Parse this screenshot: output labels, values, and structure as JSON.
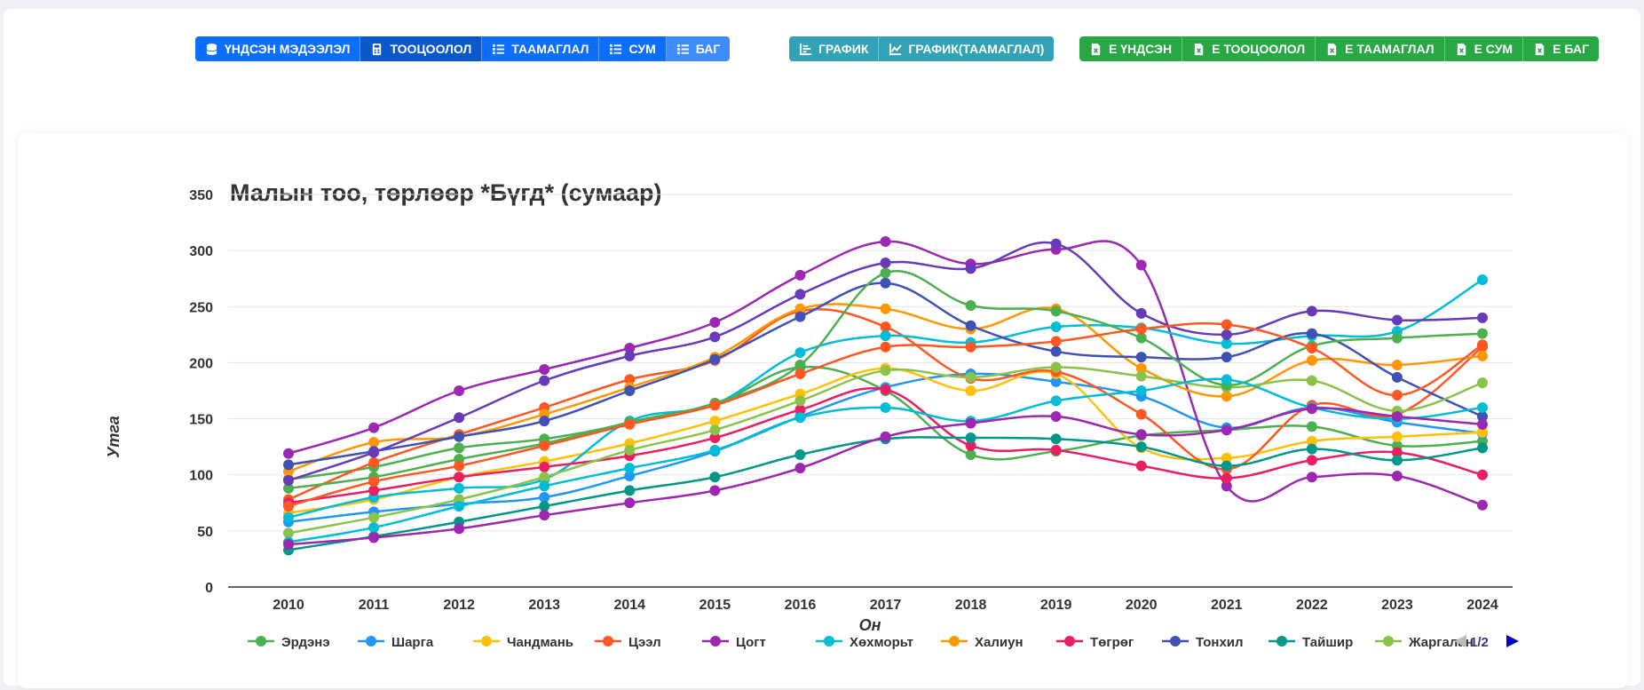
{
  "toolbar": {
    "group1": [
      {
        "label": "ҮНДСЭН МЭДЭЭЛЭЛ",
        "icon": "database-icon"
      },
      {
        "label": "ТООЦООЛОЛ",
        "icon": "calculator-icon"
      },
      {
        "label": "ТААМАГЛАЛ",
        "icon": "list-icon"
      },
      {
        "label": "СУМ",
        "icon": "list-icon"
      },
      {
        "label": "БАГ",
        "icon": "list-icon"
      }
    ],
    "group2": [
      {
        "label": "ГРАФИК",
        "icon": "bar-chart-icon"
      },
      {
        "label": "ГРАФИК(ТААМАГЛАЛ)",
        "icon": "line-chart-icon"
      }
    ],
    "group3": [
      {
        "label": "Е ҮНДСЭН",
        "icon": "excel-file-icon"
      },
      {
        "label": "Е ТООЦООЛОЛ",
        "icon": "excel-file-icon"
      },
      {
        "label": "Е ТААМАГЛАЛ",
        "icon": "excel-file-icon"
      },
      {
        "label": "Е СУМ",
        "icon": "excel-file-icon"
      },
      {
        "label": "Е БАГ",
        "icon": "excel-file-icon"
      }
    ]
  },
  "colors": {
    "primary": "#0d6efd",
    "info": "#31a3b4",
    "success": "#28a745"
  },
  "chart_data": {
    "type": "line",
    "title": "Малын тоо, төрлөөр *Бүгд* (сумаар)",
    "xlabel": "Он",
    "ylabel": "Утга",
    "ylim": [
      0,
      350
    ],
    "yticks": [
      0,
      50,
      100,
      150,
      200,
      250,
      300,
      350
    ],
    "grid": true,
    "legend_position": "bottom",
    "legend_page": "1/2",
    "categories": [
      "2010",
      "2011",
      "2012",
      "2013",
      "2014",
      "2015",
      "2016",
      "2017",
      "2018",
      "2019",
      "2020",
      "2021",
      "2022",
      "2023",
      "2024"
    ],
    "series": [
      {
        "name": "Эрдэнэ",
        "color": "#4caf50",
        "values": [
          96,
          107,
          124,
          132,
          146,
          163,
          196,
          175,
          118,
          121,
          135,
          140,
          143,
          126,
          130
        ],
        "marker": true
      },
      {
        "name": "Шарга",
        "color": "#2196f3",
        "values": [
          58,
          67,
          74,
          80,
          99,
          121,
          152,
          178,
          190,
          183,
          170,
          142,
          160,
          147,
          137
        ],
        "marker": true
      },
      {
        "name": "Чандмань",
        "color": "#ffc107",
        "values": [
          66,
          78,
          98,
          112,
          128,
          148,
          172,
          195,
          175,
          190,
          124,
          115,
          130,
          134,
          138
        ],
        "marker": true
      },
      {
        "name": "Цээл",
        "color": "#ff5722",
        "values": [
          78,
          111,
          136,
          160,
          185,
          202,
          246,
          232,
          186,
          192,
          154,
          105,
          162,
          154,
          214
        ],
        "marker": true
      },
      {
        "name": "Цогт",
        "color": "#9c27b0",
        "values": [
          119,
          142,
          175,
          194,
          213,
          236,
          278,
          308,
          288,
          301,
          287,
          90,
          98,
          99,
          73
        ],
        "marker": true
      },
      {
        "name": "Хөхморьт",
        "color": "#00bcd4",
        "values": [
          62,
          80,
          88,
          96,
          148,
          163,
          209,
          224,
          218,
          232,
          231,
          217,
          224,
          228,
          274
        ],
        "marker": true
      },
      {
        "name": "Халиун",
        "color": "#ff9800",
        "values": [
          103,
          129,
          134,
          154,
          178,
          205,
          248,
          248,
          230,
          248,
          195,
          170,
          202,
          198,
          206
        ],
        "marker": true
      },
      {
        "name": "Төгрөг",
        "color": "#e91e63",
        "values": [
          75,
          86,
          98,
          107,
          117,
          133,
          158,
          176,
          126,
          122,
          108,
          97,
          113,
          120,
          100
        ],
        "marker": true
      },
      {
        "name": "Тонхил",
        "color": "#3f51b5",
        "values": [
          109,
          121,
          134,
          148,
          175,
          203,
          241,
          271,
          233,
          210,
          205,
          205,
          226,
          187,
          152
        ],
        "marker": true
      },
      {
        "name": "Тайшир",
        "color": "#009688",
        "values": [
          33,
          45,
          58,
          72,
          86,
          98,
          118,
          132,
          133,
          132,
          125,
          108,
          123,
          113,
          124
        ],
        "marker": true
      },
      {
        "name": "Жаргалан",
        "color": "#8bc34a",
        "values": [
          48,
          62,
          78,
          98,
          122,
          140,
          166,
          193,
          187,
          196,
          188,
          178,
          184,
          157,
          182
        ],
        "marker": true
      },
      {
        "name": "",
        "color": "#4caf50",
        "values": [
          88,
          98,
          114,
          128,
          147,
          164,
          198,
          280,
          251,
          246,
          222,
          180,
          215,
          222,
          226
        ],
        "marker": true
      },
      {
        "name": "",
        "color": "#00bcd4",
        "values": [
          40,
          53,
          72,
          90,
          106,
          122,
          151,
          160,
          148,
          166,
          175,
          185,
          160,
          150,
          160
        ],
        "marker": true
      },
      {
        "name": "",
        "color": "#673ab7",
        "values": [
          95,
          120,
          151,
          184,
          206,
          223,
          261,
          289,
          284,
          306,
          244,
          225,
          246,
          238,
          240
        ],
        "marker": true
      },
      {
        "name": "",
        "color": "#9c27b0",
        "values": [
          38,
          44,
          52,
          64,
          75,
          86,
          106,
          134,
          146,
          152,
          136,
          140,
          159,
          152,
          145
        ],
        "marker": true
      },
      {
        "name": "",
        "color": "#ff5722",
        "values": [
          72,
          94,
          108,
          126,
          145,
          162,
          190,
          214,
          214,
          219,
          230,
          234,
          213,
          171,
          216
        ],
        "marker": true
      }
    ]
  }
}
